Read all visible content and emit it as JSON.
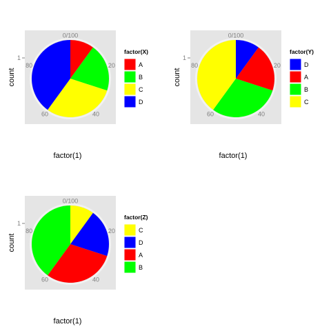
{
  "chart_data": [
    {
      "type": "pie",
      "xlabel": "factor(1)",
      "ylabel": "count",
      "y_tick": "1",
      "angle_ticks": [
        "0/100",
        "20",
        "40",
        "60",
        "80"
      ],
      "legend_title": "factor(X)",
      "legend_position": "right",
      "slices": [
        {
          "name": "A",
          "value": 10,
          "color": "#FF0000"
        },
        {
          "name": "B",
          "value": 20,
          "color": "#00FF00"
        },
        {
          "name": "C",
          "value": 30,
          "color": "#FFFF00"
        },
        {
          "name": "D",
          "value": 40,
          "color": "#0000FF"
        }
      ],
      "legend_order": [
        "A",
        "B",
        "C",
        "D"
      ],
      "colors": {
        "panel_bg": "#E5E5E5",
        "grid": "#F2F2F2",
        "tick_text": "#7F7F7F"
      }
    },
    {
      "type": "pie",
      "xlabel": "factor(1)",
      "ylabel": "count",
      "y_tick": "1",
      "angle_ticks": [
        "0/100",
        "20",
        "40",
        "60",
        "80"
      ],
      "legend_title": "factor(Y)",
      "legend_position": "right",
      "slices": [
        {
          "name": "D",
          "value": 10,
          "color": "#0000FF"
        },
        {
          "name": "A",
          "value": 20,
          "color": "#FF0000"
        },
        {
          "name": "B",
          "value": 30,
          "color": "#00FF00"
        },
        {
          "name": "C",
          "value": 40,
          "color": "#FFFF00"
        }
      ],
      "legend_order": [
        "D",
        "A",
        "B",
        "C"
      ],
      "colors": {
        "panel_bg": "#E5E5E5",
        "grid": "#F2F2F2",
        "tick_text": "#7F7F7F"
      }
    },
    {
      "type": "pie",
      "xlabel": "factor(1)",
      "ylabel": "count",
      "y_tick": "1",
      "angle_ticks": [
        "0/100",
        "20",
        "40",
        "60",
        "80"
      ],
      "legend_title": "factor(Z)",
      "legend_position": "right",
      "slices": [
        {
          "name": "C",
          "value": 10,
          "color": "#FFFF00"
        },
        {
          "name": "D",
          "value": 20,
          "color": "#0000FF"
        },
        {
          "name": "A",
          "value": 30,
          "color": "#FF0000"
        },
        {
          "name": "B",
          "value": 40,
          "color": "#00FF00"
        }
      ],
      "legend_order": [
        "C",
        "D",
        "A",
        "B"
      ],
      "colors": {
        "panel_bg": "#E5E5E5",
        "grid": "#F2F2F2",
        "tick_text": "#7F7F7F"
      }
    }
  ]
}
